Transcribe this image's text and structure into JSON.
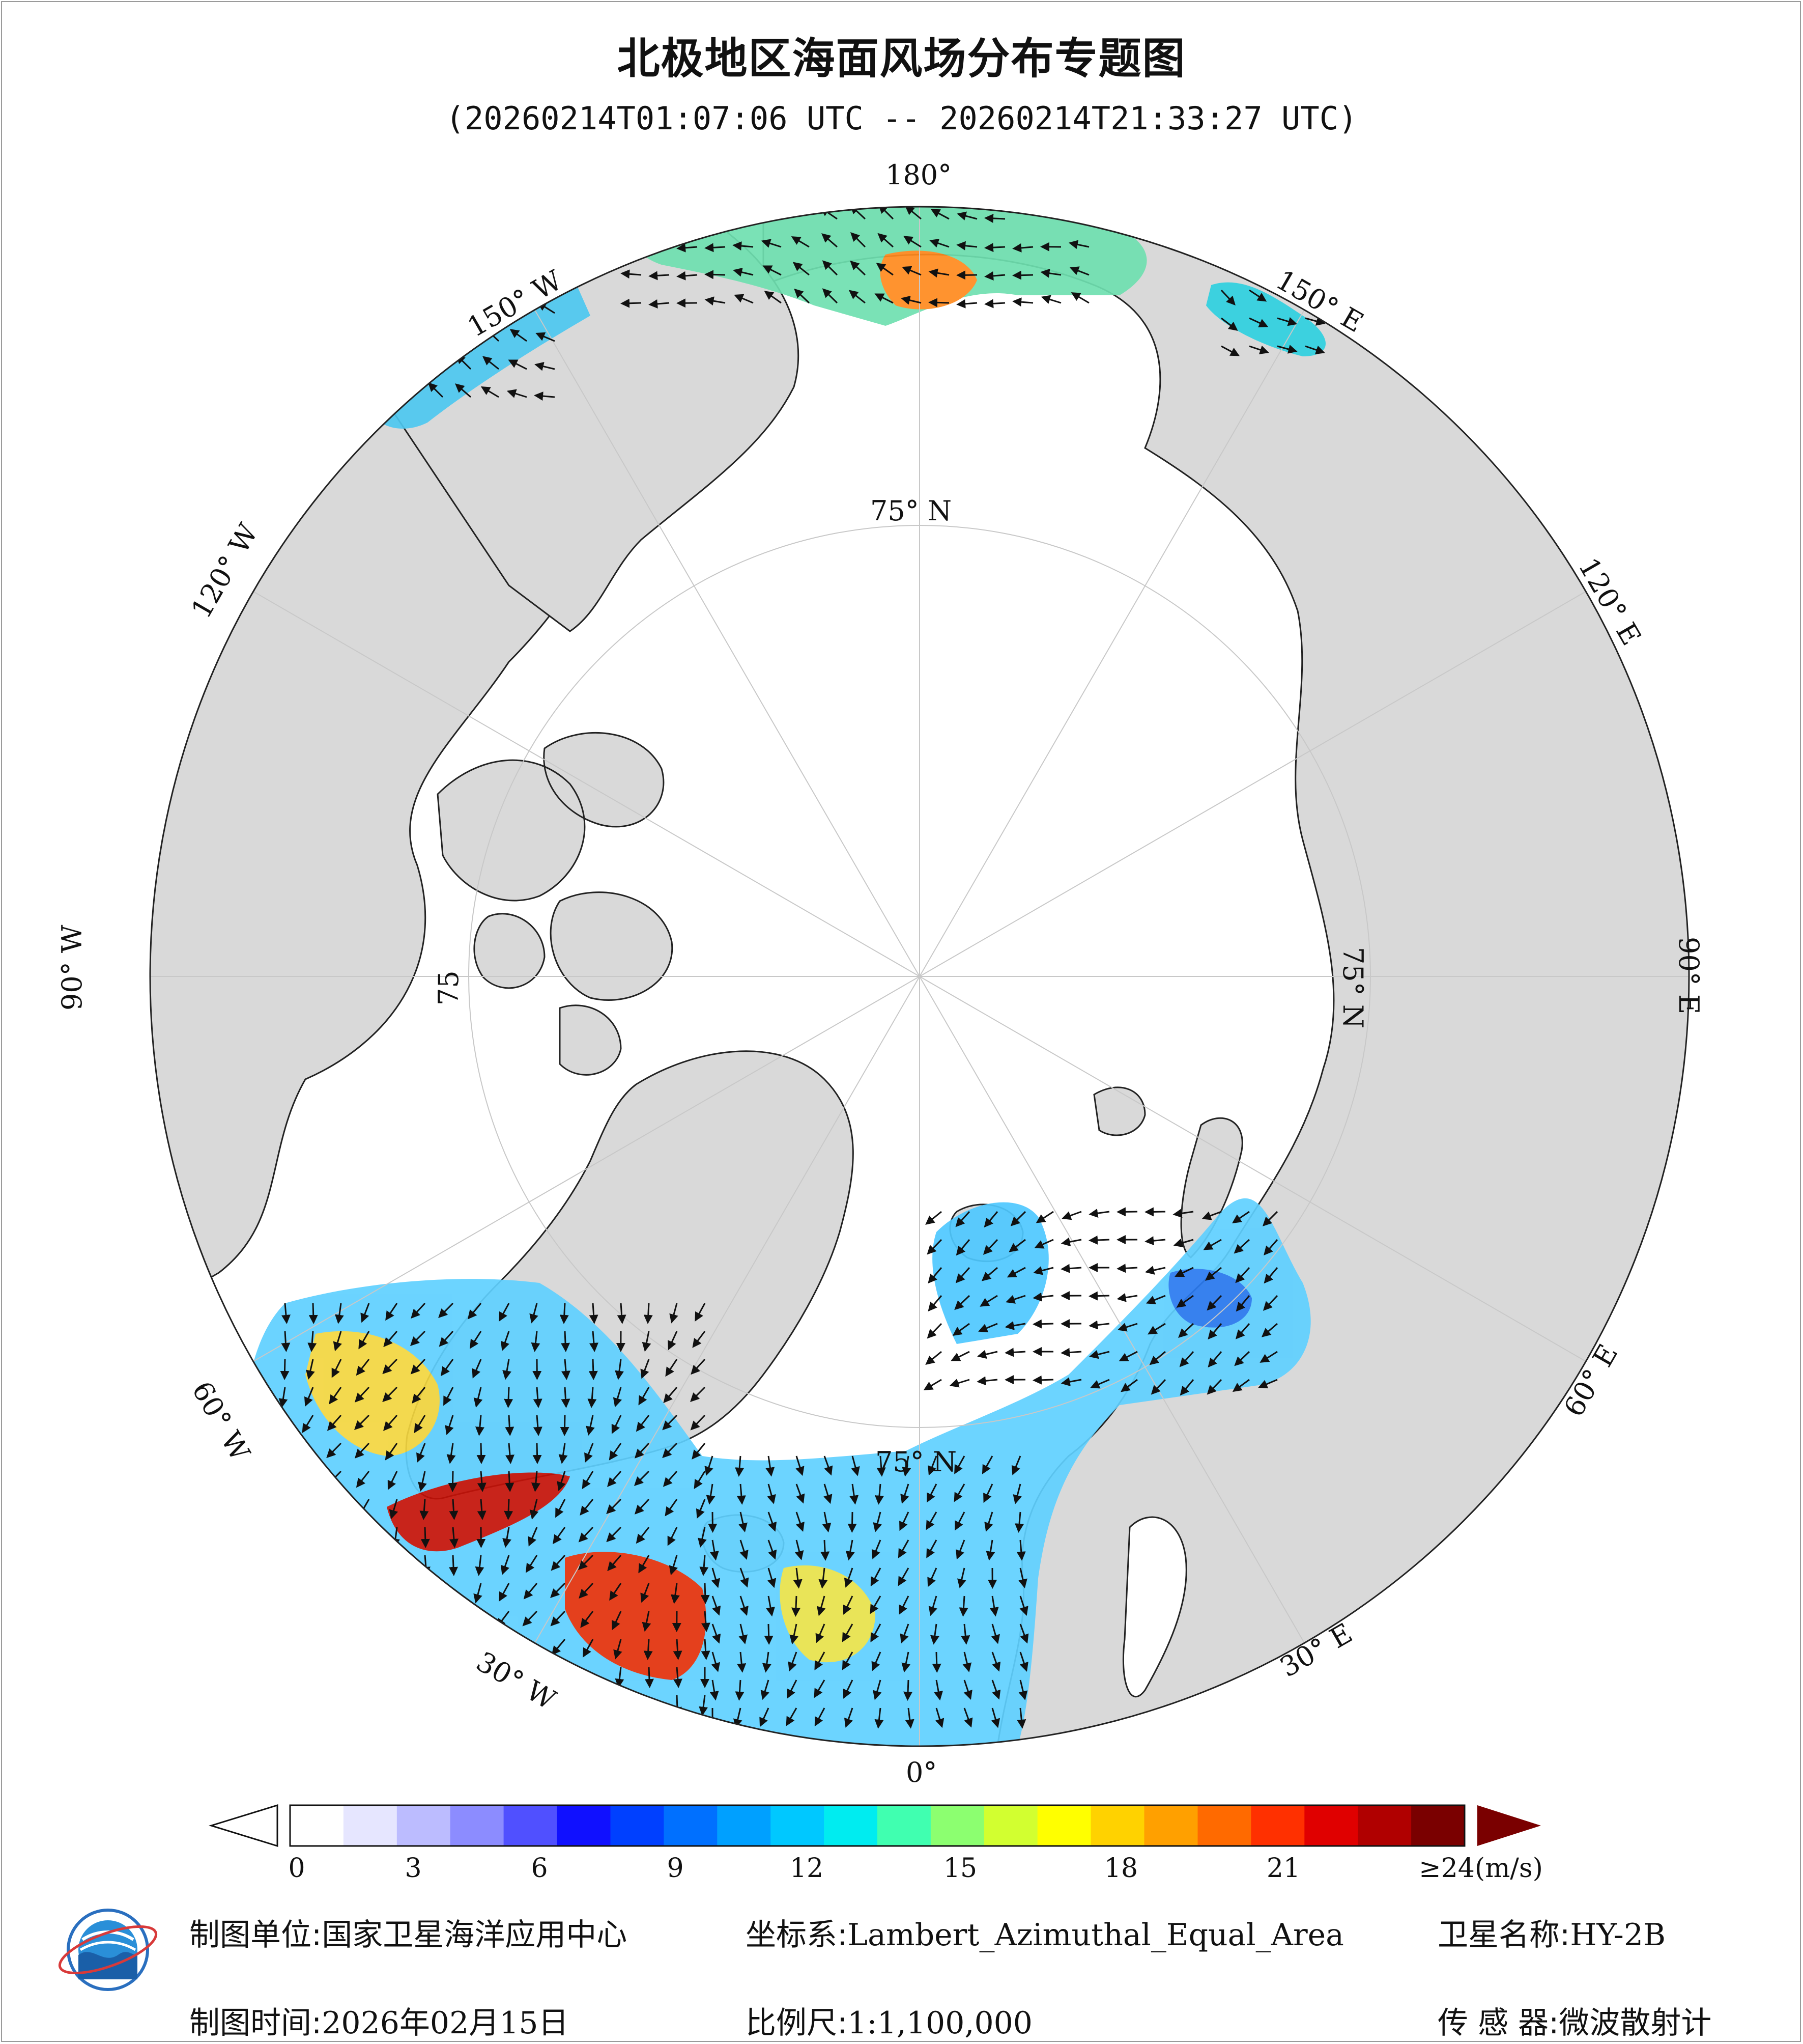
{
  "title": "北极地区海面风场分布专题图",
  "subtitle": "(20260214T01:07:06 UTC -- 20260214T21:33:27 UTC)",
  "lon_labels": {
    "top": "180°",
    "bottom": "0°",
    "left": "90° W",
    "right": "90° E",
    "w150": "150° W",
    "w120": "120° W",
    "w60": "60° W",
    "w30": "30° W",
    "e150": "150° E",
    "e120": "120° E",
    "e60": "60° E",
    "e30": "30° E"
  },
  "lat_labels": {
    "top": "75° N",
    "right": "75° N",
    "left": "75",
    "bottom": "75° N"
  },
  "colorbar": {
    "ticks": [
      "0",
      "3",
      "6",
      "9",
      "12",
      "15",
      "18",
      "21",
      "≥24(m/s)"
    ],
    "colors": [
      "#ffffff",
      "#e6e6ff",
      "#bcbcff",
      "#8c8cff",
      "#5050ff",
      "#1010ff",
      "#0040ff",
      "#0070ff",
      "#00a0ff",
      "#00c8ff",
      "#00ecf0",
      "#40ffb0",
      "#8cff70",
      "#d2ff30",
      "#ffff00",
      "#ffd200",
      "#ffa000",
      "#ff6a00",
      "#ff3000",
      "#e00000",
      "#b00000",
      "#7a0000"
    ]
  },
  "footer": {
    "unit_label": "制图单位:",
    "unit_value": "国家卫星海洋应用中心",
    "coord_label": "坐标系:",
    "coord_value": "Lambert_Azimuthal_Equal_Area",
    "sat_label": "卫星名称:",
    "sat_value": "HY-2B",
    "time_label": "制图时间:",
    "time_value": "2026年02月15日",
    "scale_label": "比例尺:",
    "scale_value": "1:1,100,000",
    "sensor_label": "传 感 器:",
    "sensor_value": "微波散射计"
  },
  "logo_icon": "nsoas-logo-icon"
}
